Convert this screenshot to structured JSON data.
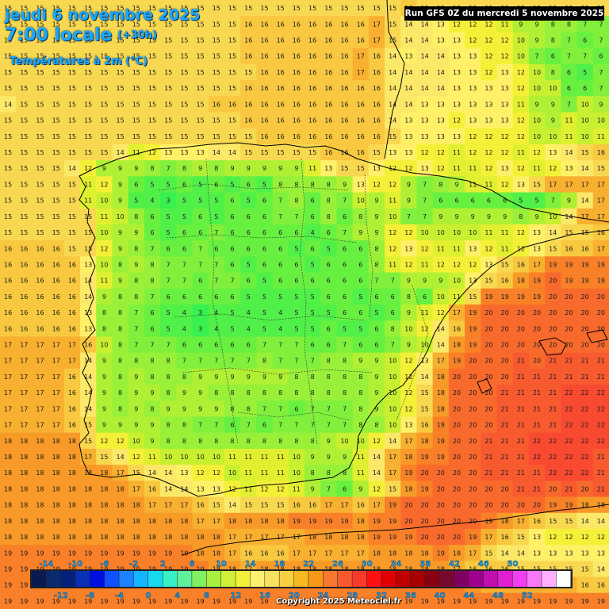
{
  "header": {
    "date": "jeudi 6 novembre 2025",
    "time": "7:00 locale",
    "lead": "(+30h)",
    "variable": "Températures à 2m (°C)",
    "run": "Run GFS 0Z du mercredi 5 novembre 2025"
  },
  "copyright": "Copyright 2025 Meteociel.fr",
  "legend": {
    "top_labels": [
      "-14",
      "-10",
      "-6",
      "-2",
      "2",
      "6",
      "10",
      "14",
      "18",
      "22",
      "26",
      "30",
      "34",
      "38",
      "42",
      "46",
      "50"
    ],
    "bottom_labels": [
      "-12",
      "-8",
      "-4",
      "0",
      "4",
      "8",
      "12",
      "16",
      "20",
      "24",
      "28",
      "32",
      "36",
      "40",
      "44",
      "48",
      "52"
    ],
    "colors": [
      "#0a1a50",
      "#0a2a70",
      "#06207c",
      "#0a30b8",
      "#0010e0",
      "#1050ff",
      "#1c82ff",
      "#14b4ff",
      "#18d8f0",
      "#38f0c8",
      "#60f09a",
      "#80f060",
      "#a8f040",
      "#d0f038",
      "#f0f038",
      "#fff070",
      "#f8e060",
      "#f8d040",
      "#f8b820",
      "#f89818",
      "#f87830",
      "#f85a30",
      "#f83a28",
      "#ff1010",
      "#e00000",
      "#c00000",
      "#a80000",
      "#880010",
      "#780830",
      "#800060",
      "#a00090",
      "#c010b0",
      "#e020d0",
      "#f040f0",
      "#f878f8",
      "#ffb0ff",
      "#ffffff"
    ]
  },
  "grid": {
    "rows": [
      "15 15 15 15 15 15 15 15 15 15 15 15 15 15 15 15 15 15 15 15 15 15 15 15 15 16 15 15 15 15 15 15 15 15 15 15 15 15",
      "15 15 15 15 15 15 15 15 15 15 15 15 15 15 15 16 16 16 16 16 16 16 16 17 15 14 14 13 12 12 12 11 9 9 8 8 7 7",
      "15 15 15 15 15 15 15 15 15 15 15 15 15 15 15 16 16 16 16 16 16 16 16 17 15 14 14 13 13 12 12 12 10 9 8 7 6 7",
      "15 15 15 15 15 15 15 15 15 15 15 15 15 15 15 16 16 16 16 16 16 16 17 16 14 13 14 14 13 13 12 12 10 7 6 7 7 6",
      "15 15 15 15 15 15 15 15 15 15 15 15 15 15 15 15 16 16 16 16 16 16 17 16 14 14 14 14 13 13 12 13 12 10 8 6 5 7",
      "15 15 15 15 15 15 15 15 15 15 15 15 15 15 15 16 16 16 16 16 16 16 16 16 14 14 14 14 13 13 13 13 12 10 10 6 6 7",
      "14 15 15 15 15 15 15 15 15 15 15 15 15 16 16 16 16 16 16 16 16 16 16 16 14 14 13 13 13 13 13 13 11 9 9 7 10 9",
      "15 15 15 15 15 15 15 15 15 15 15 15 15 15 15 16 16 16 16 16 16 16 16 16 14 13 13 13 12 13 13 13 12 10 9 11 10 10",
      "15 15 15 15 15 15 15 15 15 15 15 15 15 15 15 15 16 16 16 16 16 16 16 16 15 13 13 13 13 12 12 12 12 10 10 11 10 11",
      "15 15 15 15 15 15 15 14 11 12 13 13 13 14 14 15 15 15 15 15 16 16 16 15 13 13 12 12 11 12 12 12 11 12 13 14 15 16",
      "15 15 15 15 14 12 9 9 9 8 7 8 9 8 9 9 9 9 9 11 13 15 15 13 12 12 13 12 11 11 12 13 12 11 12 13 14 15",
      "15 15 15 15 15 11 12 9 6 5 5 6 5 6 5 6 5 8 8 8 8 9 13 12 12 9 7 8 9 11 11 12 13 15 17 17 17 17",
      "15 15 15 15 15 11 10 9 5 4 3 5 5 5 6 5 6 7 8 6 8 7 10 9 11 9 7 6 6 6 6 6 5 5 7 9 14 17",
      "15 15 15 15 15 15 11 10 8 6 5 5 6 5 6 6 6 7 7 6 8 6 8 9 10 7 7 9 9 9 9 9 8 9 10 14 17 17",
      "15 15 15 15 15 15 10 9 9 6 5 6 6 7 6 6 6 6 6 4 6 7 9 9 12 12 10 10 10 10 11 11 12 13 14 15 15 16",
      "16 16 16 16 15 15 12 9 8 7 6 6 7 6 6 6 6 6 5 6 5 6 6 8 12 13 12 11 11 13 12 11 12 13 15 16 16 17",
      "16 16 16 16 16 13 10 8 9 8 7 7 7 7 6 5 6 6 6 5 6 6 6 8 11 12 11 12 12 12 13 15 16 17 19 19 19 19",
      "16 16 16 16 16 14 11 9 8 8 7 7 6 7 7 6 5 6 6 6 6 6 6 7 7 9 9 9 10 13 15 16 18 19 20 19 19 19",
      "16 16 16 16 16 14 9 8 8 7 6 6 6 6 6 5 5 5 5 5 6 6 5 6 6 8 6 10 11 15 19 19 19 19 20 20 20 20",
      "16 16 16 16 16 13 8 8 7 6 5 4 3 4 5 4 5 4 5 5 5 6 6 5 6 9 11 12 17 19 20 20 20 20 20 20 20 20",
      "16 16 16 16 16 13 8 8 7 6 5 4 3 4 5 4 5 4 5 5 6 5 5 6 8 10 12 14 16 19 20 20 20 20 20 20 20 20",
      "17 17 17 17 17 16 10 8 7 7 7 6 6 6 6 6 7 7 7 6 6 7 6 6 7 9 10 14 18 19 20 20 20 20 20 20 20 20",
      "17 17 17 17 17 14 9 8 8 8 8 7 7 7 7 7 8 7 7 7 8 8 9 9 10 12 13 17 19 20 20 20 21 20 21 21 21 21",
      "17 17 17 17 16 14 9 8 9 8 8 8 9 9 9 9 9 9 8 8 8 8 8 9 10 12 14 18 20 20 20 20 21 21 21 21 21 21",
      "17 17 17 17 16 14 9 8 9 9 8 9 9 8 8 8 8 8 8 8 8 8 8 9 10 12 15 18 20 20 20 21 21 21 21 22 22 22",
      "17 17 17 17 16 14 9 8 9 8 9 9 9 9 8 8 7 7 6 7 7 7 8 9 10 12 15 18 20 20 20 21 21 21 21 22 22 22",
      "17 17 17 17 16 15 9 9 9 9 8 8 7 7 6 7 6 7 7 7 7 7 8 8 10 13 16 19 20 20 20 21 21 21 21 22 22 22",
      "18 18 18 18 18 15 12 12 10 9 8 8 8 8 8 8 8 8 8 8 9 10 10 12 14 17 18 19 20 20 21 21 21 22 22 22 22 22",
      "18 18 18 18 18 17 15 14 12 11 10 10 10 10 11 11 11 11 10 9 9 9 11 14 17 18 19 19 20 20 21 21 21 22 22 22 22 21",
      "18 18 18 18 18 18 18 17 15 14 14 13 12 12 10 11 11 11 10 8 8 8 11 14 17 19 20 20 20 20 21 21 21 21 22 22 22 21",
      "18 18 18 18 18 18 18 18 17 16 14 14 13 13 12 11 12 12 11 9 7 6 9 12 15 18 19 20 20 20 20 20 21 21 20 21 20 21",
      "18 18 18 18 18 18 18 18 18 17 17 17 16 15 14 15 15 15 16 16 17 17 16 17 19 20 20 20 20 20 20 20 20 20 19 19 18 18",
      "18 18 18 18 18 18 18 18 18 18 18 18 17 17 18 18 18 18 19 19 19 19 18 19 19 20 20 20 20 20 19 18 17 16 15 15 14 14",
      "18 18 18 18 18 18 18 18 18 18 18 18 18 18 17 17 17 17 17 18 18 18 18 19 19 19 20 20 20 19 17 16 15 13 12 12 12 12",
      "19 19 19 19 19 19 19 19 19 19 19 19 18 18 17 16 16 16 17 17 17 17 17 18 18 18 18 19 18 17 15 14 14 13 13 13 13 13",
      "19 19 19 19 19 19 19 19 19 19 19 19 19 18 18 17 18 18 18 18 18 18 18 18 18 18 18 18 17 16 16 16 15 15 15 15 15 14",
      "19 19 19 19 19 19 19 19 19 19 19 19 19 19 19 19 19 19 19 19 19 19 19 19 19 19 19 19 19 18 17 17 17 17 17 17 16 16",
      "19 19 19 19 19 19 19 19 19 19 19 19 19 19 19 19 19 19 19 19 19 19 19 19 19 19 19 19 19 19 19 19 19 19 19 19 19 19"
    ]
  }
}
